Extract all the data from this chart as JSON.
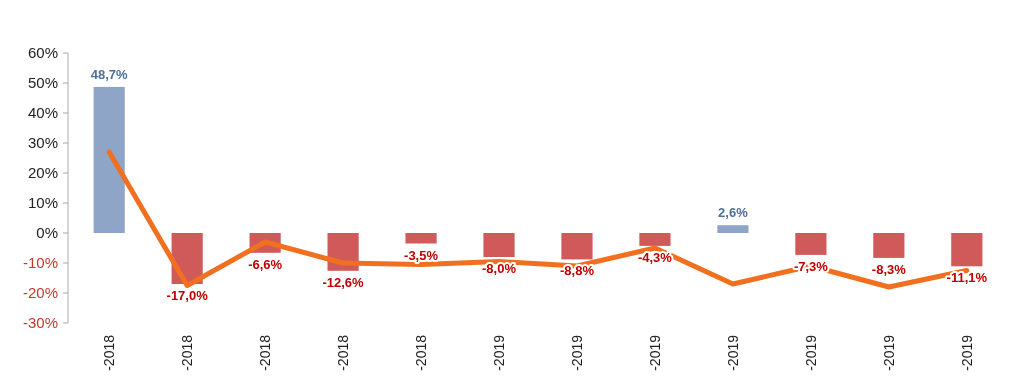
{
  "chart_data": {
    "type": "bar",
    "categories": [
      "-2018",
      "-2018",
      "-2018",
      "-2018",
      "-2018",
      "-2019",
      "-2019",
      "-2019",
      "-2019",
      "-2019",
      "-2019",
      "-2019"
    ],
    "series": [
      {
        "colors": [
          "#8ea5c8",
          "#d05a5a",
          "#d05a5a",
          "#d05a5a",
          "#d05a5a",
          "#d05a5a",
          "#d05a5a",
          "#d05a5a",
          "#8ea5c8",
          "#d05a5a",
          "#d05a5a",
          "#d05a5a"
        ],
        "values": [
          48.7,
          -17.0,
          -6.6,
          -12.6,
          -3.5,
          -8.0,
          -8.8,
          -4.3,
          2.6,
          -7.3,
          -8.3,
          -11.1
        ],
        "value_labels": [
          "48,7%",
          "-17,0%",
          "-6,6%",
          "-12,6%",
          "-3,5%",
          "-8,0%",
          "-8,8%",
          "-4,3%",
          "2,6%",
          "-7,3%",
          "-8,3%",
          "-11,1%"
        ]
      },
      {
        "type": "line",
        "color": "#f07020",
        "values": [
          27,
          -17.5,
          -3,
          -10,
          -10.5,
          -9.5,
          -11,
          -5,
          -17,
          -11,
          -18,
          -12.5
        ]
      }
    ],
    "ylim": [
      -30,
      60
    ],
    "yticks": [
      {
        "value": -30,
        "label": "-30%"
      },
      {
        "value": -20,
        "label": "-20%"
      },
      {
        "value": -10,
        "label": "-10%"
      },
      {
        "value": 0,
        "label": "0%"
      },
      {
        "value": 10,
        "label": "10%"
      },
      {
        "value": 20,
        "label": "20%"
      },
      {
        "value": 30,
        "label": "30%"
      },
      {
        "value": 40,
        "label": "40%"
      },
      {
        "value": 50,
        "label": "50%"
      },
      {
        "value": 60,
        "label": "60%"
      }
    ],
    "marker": "none",
    "line_style": "solid"
  }
}
